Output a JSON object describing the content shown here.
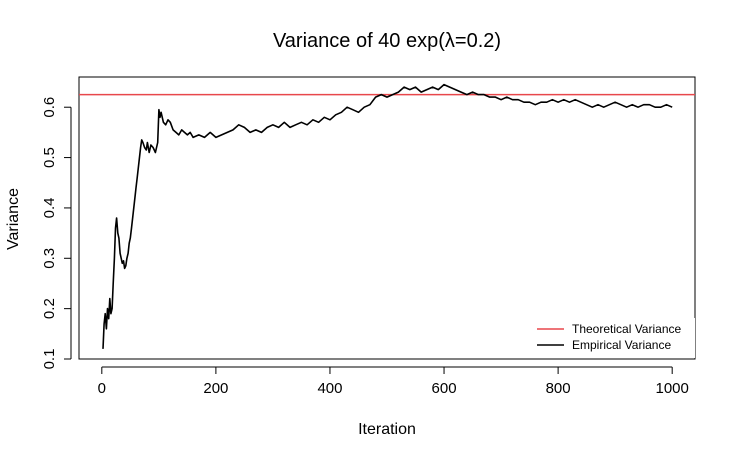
{
  "chart_data": {
    "type": "line",
    "title": "Variance of 40 exp(λ=0.2)",
    "xlabel": "Iteration",
    "ylabel": "Variance",
    "xlim": [
      -40,
      1040
    ],
    "ylim": [
      0.1,
      0.66
    ],
    "x_ticks": [
      0,
      200,
      400,
      600,
      800,
      1000
    ],
    "y_ticks": [
      0.1,
      0.2,
      0.3,
      0.4,
      0.5,
      0.6
    ],
    "x_tick_labels": [
      "0",
      "200",
      "400",
      "600",
      "800",
      "1000"
    ],
    "y_tick_labels": [
      "0.1",
      "0.2",
      "0.3",
      "0.4",
      "0.5",
      "0.6"
    ],
    "grid": false,
    "legend_position": "bottom-right",
    "series": [
      {
        "name": "Theoretical Variance",
        "color": "#e8474b",
        "type": "hline",
        "value": 0.625
      },
      {
        "name": "Empirical Variance",
        "color": "#000000",
        "x": [
          2,
          4,
          6,
          8,
          10,
          12,
          14,
          16,
          18,
          20,
          22,
          24,
          26,
          28,
          30,
          32,
          34,
          36,
          38,
          40,
          42,
          44,
          46,
          48,
          50,
          52,
          55,
          58,
          60,
          62,
          65,
          68,
          70,
          72,
          75,
          78,
          80,
          83,
          86,
          90,
          94,
          98,
          100,
          102,
          104,
          108,
          112,
          116,
          120,
          125,
          130,
          135,
          140,
          145,
          150,
          155,
          160,
          170,
          180,
          190,
          200,
          210,
          220,
          230,
          240,
          250,
          260,
          270,
          280,
          290,
          300,
          310,
          320,
          330,
          340,
          350,
          360,
          370,
          380,
          390,
          400,
          410,
          420,
          430,
          440,
          450,
          460,
          470,
          480,
          490,
          500,
          510,
          520,
          530,
          540,
          550,
          560,
          570,
          580,
          590,
          600,
          610,
          620,
          630,
          640,
          650,
          660,
          670,
          680,
          690,
          700,
          710,
          720,
          730,
          740,
          750,
          760,
          770,
          780,
          790,
          800,
          810,
          820,
          830,
          840,
          850,
          860,
          870,
          880,
          890,
          900,
          910,
          920,
          930,
          940,
          950,
          960,
          970,
          980,
          990,
          1000
        ],
        "y": [
          0.12,
          0.17,
          0.19,
          0.16,
          0.2,
          0.18,
          0.22,
          0.19,
          0.2,
          0.25,
          0.3,
          0.36,
          0.38,
          0.35,
          0.34,
          0.31,
          0.3,
          0.29,
          0.295,
          0.28,
          0.285,
          0.3,
          0.31,
          0.33,
          0.34,
          0.36,
          0.39,
          0.42,
          0.44,
          0.46,
          0.49,
          0.52,
          0.535,
          0.53,
          0.52,
          0.515,
          0.53,
          0.51,
          0.525,
          0.52,
          0.51,
          0.53,
          0.595,
          0.58,
          0.59,
          0.57,
          0.565,
          0.575,
          0.57,
          0.555,
          0.55,
          0.545,
          0.555,
          0.55,
          0.545,
          0.55,
          0.54,
          0.545,
          0.54,
          0.55,
          0.54,
          0.545,
          0.55,
          0.555,
          0.565,
          0.56,
          0.55,
          0.555,
          0.55,
          0.56,
          0.565,
          0.56,
          0.57,
          0.56,
          0.565,
          0.57,
          0.565,
          0.575,
          0.57,
          0.58,
          0.575,
          0.585,
          0.59,
          0.6,
          0.595,
          0.59,
          0.6,
          0.605,
          0.62,
          0.625,
          0.62,
          0.625,
          0.63,
          0.64,
          0.635,
          0.64,
          0.63,
          0.635,
          0.64,
          0.635,
          0.645,
          0.64,
          0.635,
          0.63,
          0.625,
          0.63,
          0.625,
          0.625,
          0.62,
          0.62,
          0.615,
          0.62,
          0.615,
          0.615,
          0.61,
          0.61,
          0.605,
          0.61,
          0.61,
          0.615,
          0.61,
          0.615,
          0.61,
          0.615,
          0.61,
          0.605,
          0.6,
          0.605,
          0.6,
          0.605,
          0.61,
          0.605,
          0.6,
          0.605,
          0.6,
          0.605,
          0.605,
          0.6,
          0.6,
          0.605,
          0.6
        ]
      }
    ]
  }
}
